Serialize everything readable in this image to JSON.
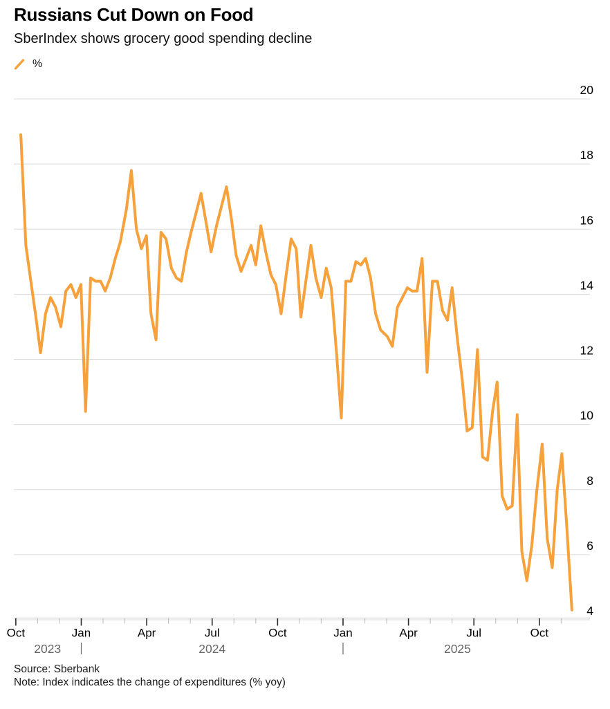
{
  "chart_data": {
    "type": "line",
    "title": "Russians Cut Down on Food",
    "subtitle": "SberIndex shows grocery good spending decline",
    "unit": "%",
    "legend_position": "top-left",
    "grid": "horizontal",
    "ylim": [
      4,
      20
    ],
    "y_ticks": [
      4,
      6,
      8,
      10,
      12,
      14,
      16,
      18,
      20
    ],
    "x_axis": {
      "start_month": "2023-10",
      "end_month": "2025-11",
      "major_tick_months": [
        "Jan",
        "Apr",
        "Jul",
        "Oct"
      ],
      "year_labels": [
        "2023",
        "2024",
        "2025"
      ],
      "year_divider_dates": [
        "2024-01-01",
        "2025-01-01"
      ]
    },
    "colors": {
      "line": "#F6A13B",
      "grid": "#DBDBDB",
      "axis": "#C9C9C9",
      "minor_tick": "#C4C4C4",
      "major_tick": "#2B2B2B",
      "tick_label": "#000000",
      "year_label": "#666666"
    },
    "series": [
      {
        "name": "%",
        "color": "#F6A13B",
        "points": [
          [
            "2023-10-08",
            18.9
          ],
          [
            "2023-10-15",
            15.5
          ],
          [
            "2023-10-22",
            14.4
          ],
          [
            "2023-10-29",
            13.3
          ],
          [
            "2023-11-05",
            12.2
          ],
          [
            "2023-11-12",
            13.4
          ],
          [
            "2023-11-19",
            13.9
          ],
          [
            "2023-11-26",
            13.6
          ],
          [
            "2023-12-03",
            13.0
          ],
          [
            "2023-12-10",
            14.1
          ],
          [
            "2023-12-17",
            14.3
          ],
          [
            "2023-12-24",
            13.9
          ],
          [
            "2023-12-31",
            14.3
          ],
          [
            "2024-01-07",
            10.4
          ],
          [
            "2024-01-14",
            14.5
          ],
          [
            "2024-01-21",
            14.4
          ],
          [
            "2024-01-28",
            14.4
          ],
          [
            "2024-02-04",
            14.1
          ],
          [
            "2024-02-11",
            14.5
          ],
          [
            "2024-02-18",
            15.1
          ],
          [
            "2024-02-25",
            15.6
          ],
          [
            "2024-03-03",
            16.6
          ],
          [
            "2024-03-10",
            17.8
          ],
          [
            "2024-03-17",
            16.0
          ],
          [
            "2024-03-24",
            15.4
          ],
          [
            "2024-03-31",
            15.8
          ],
          [
            "2024-04-07",
            13.4
          ],
          [
            "2024-04-14",
            12.6
          ],
          [
            "2024-04-21",
            15.9
          ],
          [
            "2024-04-28",
            15.7
          ],
          [
            "2024-05-05",
            14.8
          ],
          [
            "2024-05-12",
            14.5
          ],
          [
            "2024-05-19",
            14.4
          ],
          [
            "2024-05-26",
            15.3
          ],
          [
            "2024-06-02",
            15.9
          ],
          [
            "2024-06-09",
            16.5
          ],
          [
            "2024-06-16",
            17.1
          ],
          [
            "2024-06-23",
            16.2
          ],
          [
            "2024-06-30",
            15.3
          ],
          [
            "2024-07-07",
            16.1
          ],
          [
            "2024-07-14",
            16.7
          ],
          [
            "2024-07-21",
            17.3
          ],
          [
            "2024-07-28",
            16.3
          ],
          [
            "2024-08-04",
            15.2
          ],
          [
            "2024-08-11",
            14.7
          ],
          [
            "2024-08-18",
            15.1
          ],
          [
            "2024-08-25",
            15.5
          ],
          [
            "2024-09-01",
            14.9
          ],
          [
            "2024-09-08",
            16.1
          ],
          [
            "2024-09-15",
            15.3
          ],
          [
            "2024-09-22",
            14.6
          ],
          [
            "2024-09-29",
            14.3
          ],
          [
            "2024-10-06",
            13.4
          ],
          [
            "2024-10-13",
            14.6
          ],
          [
            "2024-10-20",
            15.7
          ],
          [
            "2024-10-27",
            15.4
          ],
          [
            "2024-11-03",
            13.3
          ],
          [
            "2024-11-10",
            14.4
          ],
          [
            "2024-11-17",
            15.5
          ],
          [
            "2024-11-24",
            14.5
          ],
          [
            "2024-12-01",
            13.9
          ],
          [
            "2024-12-08",
            14.8
          ],
          [
            "2024-12-15",
            14.2
          ],
          [
            "2024-12-22",
            12.3
          ],
          [
            "2024-12-29",
            10.2
          ],
          [
            "2025-01-05",
            14.4
          ],
          [
            "2025-01-12",
            14.4
          ],
          [
            "2025-01-19",
            15.0
          ],
          [
            "2025-01-26",
            14.9
          ],
          [
            "2025-02-02",
            15.1
          ],
          [
            "2025-02-09",
            14.5
          ],
          [
            "2025-02-16",
            13.4
          ],
          [
            "2025-02-23",
            12.9
          ],
          [
            "2025-03-02",
            12.7
          ],
          [
            "2025-03-09",
            12.4
          ],
          [
            "2025-03-16",
            13.6
          ],
          [
            "2025-03-23",
            13.9
          ],
          [
            "2025-03-30",
            14.2
          ],
          [
            "2025-04-06",
            14.1
          ],
          [
            "2025-04-13",
            14.1
          ],
          [
            "2025-04-20",
            15.1
          ],
          [
            "2025-04-27",
            11.6
          ],
          [
            "2025-05-04",
            14.4
          ],
          [
            "2025-05-11",
            14.4
          ],
          [
            "2025-05-18",
            13.5
          ],
          [
            "2025-05-25",
            13.2
          ],
          [
            "2025-06-01",
            14.2
          ],
          [
            "2025-06-08",
            12.7
          ],
          [
            "2025-06-15",
            11.4
          ],
          [
            "2025-06-22",
            9.8
          ],
          [
            "2025-06-29",
            9.9
          ],
          [
            "2025-07-06",
            12.3
          ],
          [
            "2025-07-13",
            9.0
          ],
          [
            "2025-07-20",
            8.9
          ],
          [
            "2025-07-27",
            10.4
          ],
          [
            "2025-08-03",
            11.3
          ],
          [
            "2025-08-10",
            7.8
          ],
          [
            "2025-08-17",
            7.4
          ],
          [
            "2025-08-24",
            7.5
          ],
          [
            "2025-08-31",
            10.3
          ],
          [
            "2025-09-07",
            6.1
          ],
          [
            "2025-09-14",
            5.2
          ],
          [
            "2025-09-21",
            6.3
          ],
          [
            "2025-09-28",
            8.0
          ],
          [
            "2025-10-05",
            9.4
          ],
          [
            "2025-10-12",
            6.5
          ],
          [
            "2025-10-19",
            5.6
          ],
          [
            "2025-10-26",
            8.0
          ],
          [
            "2025-11-02",
            9.1
          ],
          [
            "2025-11-09",
            6.8
          ],
          [
            "2025-11-16",
            4.3
          ]
        ]
      }
    ]
  },
  "footer": {
    "source": "Source: Sberbank",
    "note": "Note: Index indicates the change of expenditures (% yoy)"
  }
}
